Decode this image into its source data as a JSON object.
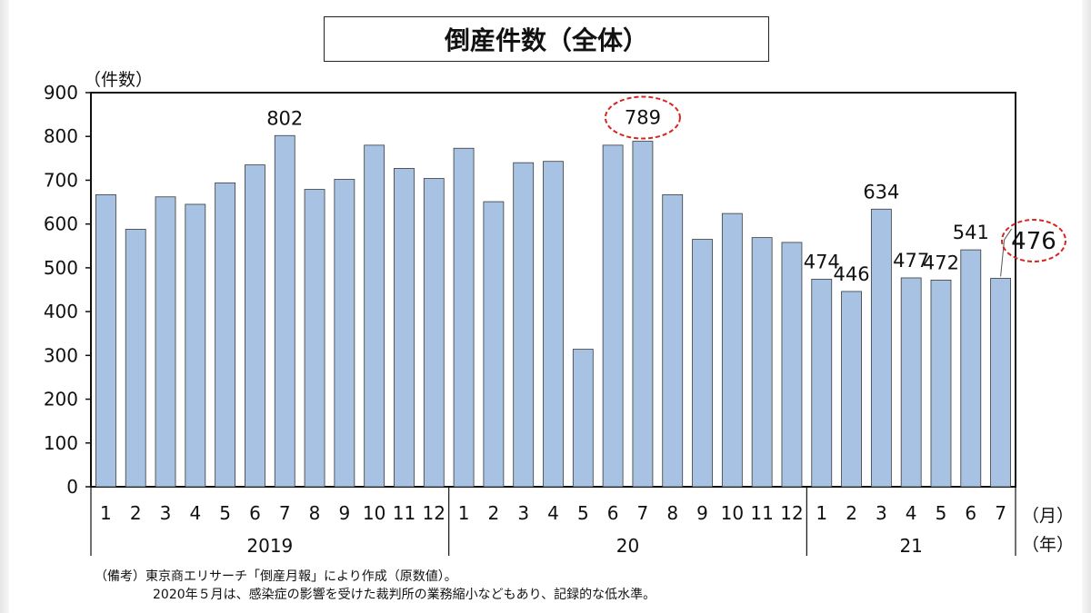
{
  "chart_data": {
    "type": "bar",
    "title": "倒産件数（全体）",
    "ylabel": "（件数）",
    "ylim": [
      0,
      900
    ],
    "yticks": [
      0,
      100,
      200,
      300,
      400,
      500,
      600,
      700,
      800,
      900
    ],
    "categories": [
      "1",
      "2",
      "3",
      "4",
      "5",
      "6",
      "7",
      "8",
      "9",
      "10",
      "11",
      "12",
      "1",
      "2",
      "3",
      "4",
      "5",
      "6",
      "7",
      "8",
      "9",
      "10",
      "11",
      "12",
      "1",
      "2",
      "3",
      "4",
      "5",
      "6",
      "7"
    ],
    "values": [
      667,
      588,
      662,
      645,
      694,
      735,
      802,
      679,
      702,
      780,
      727,
      704,
      773,
      651,
      740,
      743,
      314,
      780,
      789,
      667,
      565,
      624,
      569,
      558,
      474,
      446,
      634,
      477,
      472,
      541,
      476
    ],
    "data_labels": [
      {
        "index": 6,
        "text": "802"
      },
      {
        "index": 18,
        "text": "789",
        "highlight": true
      },
      {
        "index": 24,
        "text": "474"
      },
      {
        "index": 25,
        "text": "446"
      },
      {
        "index": 26,
        "text": "634"
      },
      {
        "index": 27,
        "text": "477"
      },
      {
        "index": 28,
        "text": "472"
      },
      {
        "index": 29,
        "text": "541"
      },
      {
        "index": 30,
        "text": "476",
        "highlight": true
      }
    ],
    "year_groups": [
      {
        "label": "2019",
        "start": 0,
        "end": 11
      },
      {
        "label": "20",
        "start": 12,
        "end": 23
      },
      {
        "label": "21",
        "start": 24,
        "end": 30
      }
    ],
    "month_unit": "（月）",
    "year_unit": "（年）",
    "bar_color": "#a7c2e2",
    "highlight_color": "#d6271f",
    "grid": false,
    "legend": "none"
  },
  "notes": {
    "line1": "（備考）東京商エリサーチ「倒産月報」により作成（原数値）。",
    "line2": "2020年５月は、感染症の影響を受けた裁判所の業務縮小などもあり、記録的な低水準。"
  }
}
